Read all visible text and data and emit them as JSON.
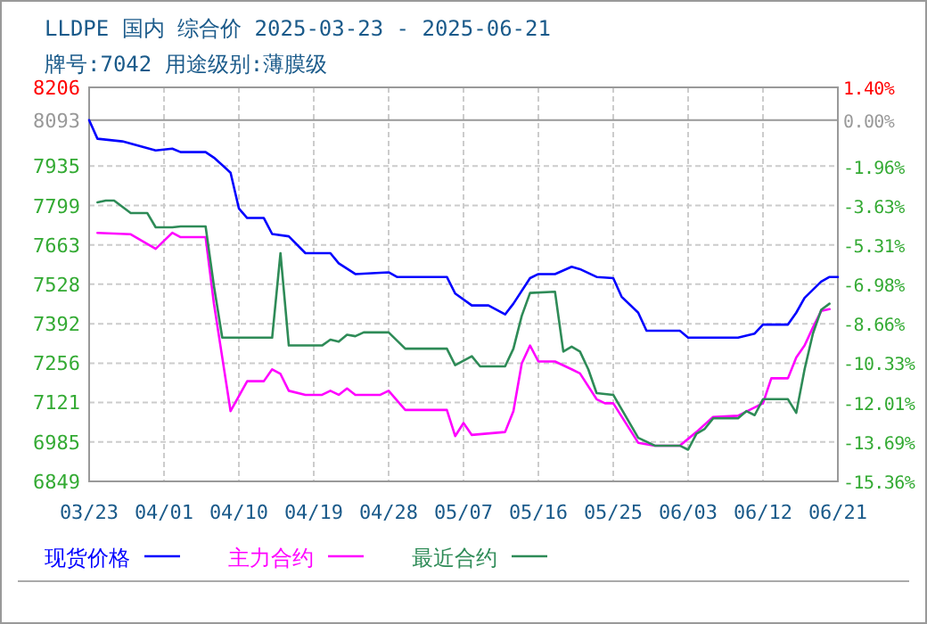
{
  "chart_data": {
    "type": "line",
    "title": "LLDPE 国内 综合价 2025-03-23 - 2025-06-21",
    "subtitle": "牌号:7042 用途级别:薄膜级",
    "xlim": [
      "2025-03-23",
      "2025-06-21"
    ],
    "xticks": [
      {
        "value": "2025-03-23",
        "label": "03/23"
      },
      {
        "value": "2025-04-01",
        "label": "04/01"
      },
      {
        "value": "2025-04-10",
        "label": "04/10"
      },
      {
        "value": "2025-04-19",
        "label": "04/19"
      },
      {
        "value": "2025-04-28",
        "label": "04/28"
      },
      {
        "value": "2025-05-07",
        "label": "05/07"
      },
      {
        "value": "2025-05-16",
        "label": "05/16"
      },
      {
        "value": "2025-05-25",
        "label": "05/25"
      },
      {
        "value": "2025-06-03",
        "label": "06/03"
      },
      {
        "value": "2025-06-12",
        "label": "06/12"
      },
      {
        "value": "2025-06-21",
        "label": "06/21"
      }
    ],
    "ylim": [
      6849,
      8206
    ],
    "yticks": [
      6849,
      6985,
      7121,
      7256,
      7392,
      7528,
      7663,
      7799,
      7935,
      8093,
      8206
    ],
    "y2lim": [
      -15.36,
      1.4
    ],
    "y2ticks": [
      {
        "value": -15.36,
        "label": "-15.36%"
      },
      {
        "value": -13.69,
        "label": "-13.69%"
      },
      {
        "value": -12.01,
        "label": "-12.01%"
      },
      {
        "value": -10.33,
        "label": "-10.33%"
      },
      {
        "value": -8.66,
        "label": "-8.66%"
      },
      {
        "value": -6.98,
        "label": "-6.98%"
      },
      {
        "value": -5.31,
        "label": "-5.31%"
      },
      {
        "value": -3.63,
        "label": "-3.63%"
      },
      {
        "value": -1.96,
        "label": "-1.96%"
      },
      {
        "value": 0,
        "label": "0.00%"
      },
      {
        "value": 1.4,
        "label": "1.40%"
      }
    ],
    "ref_lines": [
      {
        "axis": "y",
        "value": 8093,
        "label": null,
        "color": "#999999"
      }
    ],
    "grid": true,
    "legend": "bottom",
    "line_style": "solid",
    "marker": "none",
    "series": [
      {
        "name": "现货价格",
        "color": "#0000ff",
        "x": [
          "2025-03-23",
          "2025-03-24",
          "2025-03-27",
          "2025-03-31",
          "2025-04-02",
          "2025-04-03",
          "2025-04-06",
          "2025-04-07",
          "2025-04-09",
          "2025-04-10",
          "2025-04-11",
          "2025-04-13",
          "2025-04-14",
          "2025-04-16",
          "2025-04-18",
          "2025-04-21",
          "2025-04-22",
          "2025-04-24",
          "2025-04-28",
          "2025-04-29",
          "2025-05-05",
          "2025-05-06",
          "2025-05-08",
          "2025-05-10",
          "2025-05-12",
          "2025-05-13",
          "2025-05-15",
          "2025-05-16",
          "2025-05-18",
          "2025-05-20",
          "2025-05-21",
          "2025-05-23",
          "2025-05-25",
          "2025-05-26",
          "2025-05-28",
          "2025-05-29",
          "2025-06-02",
          "2025-06-03",
          "2025-06-09",
          "2025-06-11",
          "2025-06-12",
          "2025-06-15",
          "2025-06-16",
          "2025-06-17",
          "2025-06-19",
          "2025-06-20",
          "2025-06-21"
        ],
        "values": [
          8093,
          8029,
          8020,
          7989,
          7995,
          7983,
          7983,
          7964,
          7912,
          7789,
          7756,
          7756,
          7701,
          7693,
          7635,
          7635,
          7600,
          7563,
          7569,
          7553,
          7553,
          7496,
          7455,
          7455,
          7424,
          7461,
          7549,
          7563,
          7563,
          7588,
          7580,
          7553,
          7549,
          7485,
          7430,
          7368,
          7368,
          7344,
          7344,
          7358,
          7389,
          7389,
          7430,
          7481,
          7537,
          7553,
          7553
        ]
      },
      {
        "name": "主力合约",
        "color": "#ff00ff",
        "x": [
          "2025-03-24",
          "2025-03-28",
          "2025-03-31",
          "2025-04-02",
          "2025-04-03",
          "2025-04-06",
          "2025-04-07",
          "2025-04-08",
          "2025-04-09",
          "2025-04-11",
          "2025-04-13",
          "2025-04-14",
          "2025-04-15",
          "2025-04-16",
          "2025-04-18",
          "2025-04-20",
          "2025-04-21",
          "2025-04-22",
          "2025-04-23",
          "2025-04-24",
          "2025-04-27",
          "2025-04-28",
          "2025-04-30",
          "2025-05-05",
          "2025-05-06",
          "2025-05-07",
          "2025-05-08",
          "2025-05-12",
          "2025-05-13",
          "2025-05-14",
          "2025-05-15",
          "2025-05-16",
          "2025-05-18",
          "2025-05-20",
          "2025-05-21",
          "2025-05-23",
          "2025-05-24",
          "2025-05-25",
          "2025-05-28",
          "2025-05-30",
          "2025-06-02",
          "2025-06-04",
          "2025-06-06",
          "2025-06-09",
          "2025-06-12",
          "2025-06-13",
          "2025-06-15",
          "2025-06-16",
          "2025-06-17",
          "2025-06-18",
          "2025-06-19",
          "2025-06-20"
        ],
        "values": [
          7705,
          7700,
          7650,
          7705,
          7690,
          7690,
          7461,
          7276,
          7091,
          7194,
          7194,
          7235,
          7219,
          7161,
          7147,
          7147,
          7161,
          7147,
          7169,
          7147,
          7147,
          7161,
          7095,
          7095,
          7005,
          7050,
          7009,
          7019,
          7091,
          7255,
          7317,
          7262,
          7262,
          7235,
          7221,
          7132,
          7118,
          7118,
          6982,
          6972,
          6972,
          7019,
          7071,
          7075,
          7118,
          7204,
          7204,
          7276,
          7317,
          7379,
          7436,
          7442
        ]
      },
      {
        "name": "最近合约",
        "color": "#2e8b57",
        "x": [
          "2025-03-24",
          "2025-03-25",
          "2025-03-26",
          "2025-03-28",
          "2025-03-30",
          "2025-03-31",
          "2025-04-02",
          "2025-04-03",
          "2025-04-06",
          "2025-04-07",
          "2025-04-08",
          "2025-04-13",
          "2025-04-14",
          "2025-04-15",
          "2025-04-16",
          "2025-04-20",
          "2025-04-21",
          "2025-04-22",
          "2025-04-23",
          "2025-04-24",
          "2025-04-25",
          "2025-04-28",
          "2025-04-30",
          "2025-05-05",
          "2025-05-06",
          "2025-05-08",
          "2025-05-09",
          "2025-05-12",
          "2025-05-13",
          "2025-05-14",
          "2025-05-15",
          "2025-05-18",
          "2025-05-19",
          "2025-05-20",
          "2025-05-21",
          "2025-05-22",
          "2025-05-23",
          "2025-05-25",
          "2025-05-28",
          "2025-05-30",
          "2025-06-02",
          "2025-06-03",
          "2025-06-04",
          "2025-06-05",
          "2025-06-06",
          "2025-06-09",
          "2025-06-10",
          "2025-06-11",
          "2025-06-12",
          "2025-06-15",
          "2025-06-16",
          "2025-06-17",
          "2025-06-18",
          "2025-06-19",
          "2025-06-20"
        ],
        "values": [
          7810,
          7816,
          7816,
          7773,
          7773,
          7724,
          7724,
          7727,
          7727,
          7522,
          7344,
          7344,
          7344,
          7635,
          7317,
          7317,
          7337,
          7330,
          7354,
          7349,
          7362,
          7362,
          7306,
          7306,
          7249,
          7280,
          7245,
          7245,
          7306,
          7419,
          7498,
          7502,
          7296,
          7313,
          7296,
          7235,
          7153,
          7147,
          6999,
          6972,
          6972,
          6958,
          7013,
          7030,
          7066,
          7066,
          7091,
          7077,
          7132,
          7132,
          7085,
          7235,
          7358,
          7440,
          7461
        ]
      }
    ]
  }
}
